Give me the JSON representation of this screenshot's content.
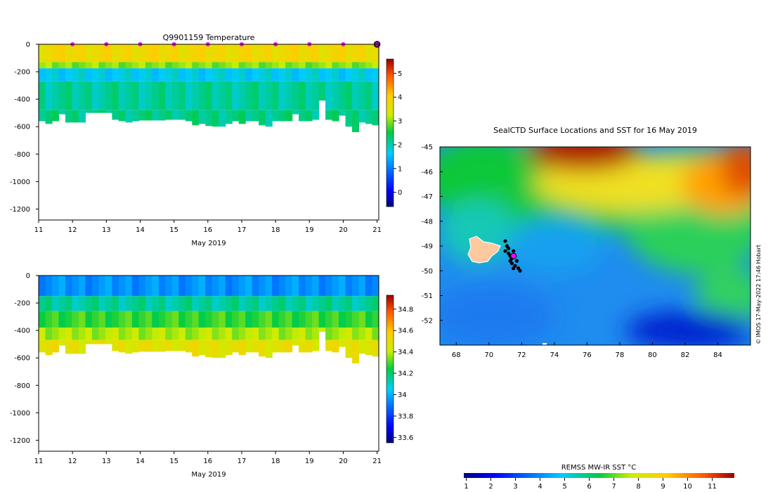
{
  "chart_data": [
    {
      "type": "heatmap",
      "title": "Q9901159  Temperature",
      "xlabel": "May 2019",
      "x_ticks": [
        "11",
        "12",
        "13",
        "14",
        "15",
        "16",
        "17",
        "18",
        "19",
        "20",
        "21"
      ],
      "xlim": [
        11,
        21.05
      ],
      "y_ticks": [
        "0",
        "-200",
        "-400",
        "-600",
        "-800",
        "-1000",
        "-1200"
      ],
      "ylim": [
        -1280,
        0
      ],
      "colorbar": {
        "ticks": [
          "0",
          "1",
          "2",
          "3",
          "4",
          "5"
        ],
        "range": [
          -0.6,
          5.6
        ]
      },
      "profile_max_depth_m": [
        560,
        580,
        560,
        510,
        570,
        570,
        570,
        500,
        500,
        500,
        500,
        550,
        560,
        570,
        560,
        555,
        555,
        555,
        555,
        550,
        550,
        550,
        560,
        590,
        580,
        595,
        600,
        600,
        580,
        560,
        580,
        560,
        560,
        590,
        600,
        560,
        560,
        560,
        510,
        560,
        560,
        550,
        410,
        550,
        560,
        520,
        600,
        640,
        570,
        580,
        590
      ],
      "layers": [
        {
          "depth": [
            0,
            130
          ],
          "value": 3.8
        },
        {
          "depth": [
            130,
            175
          ],
          "value": 3.0
        },
        {
          "depth": [
            175,
            270
          ],
          "value": 1.7
        },
        {
          "depth": [
            270,
            480
          ],
          "value": 2.1
        },
        {
          "depth": [
            480,
            700
          ],
          "value": 2.2
        }
      ],
      "surface_markers_day": [
        12,
        13,
        14,
        15,
        16,
        17,
        18,
        19,
        20
      ],
      "end_marker_day": 21
    },
    {
      "type": "heatmap",
      "title": "",
      "xlabel": "May 2019",
      "x_ticks": [
        "11",
        "12",
        "13",
        "14",
        "15",
        "16",
        "17",
        "18",
        "19",
        "20",
        "21"
      ],
      "xlim": [
        11,
        21.05
      ],
      "y_ticks": [
        "0",
        "-200",
        "-400",
        "-600",
        "-800",
        "-1000",
        "-1200"
      ],
      "ylim": [
        -1280,
        0
      ],
      "colorbar": {
        "ticks": [
          "33.6",
          "33.8",
          "34",
          "34.2",
          "34.4",
          "34.6",
          "34.8"
        ],
        "range": [
          33.55,
          34.93
        ]
      },
      "profile_max_depth_m": [
        560,
        580,
        560,
        510,
        570,
        570,
        570,
        500,
        500,
        500,
        500,
        550,
        560,
        570,
        560,
        555,
        555,
        555,
        555,
        550,
        550,
        550,
        560,
        590,
        580,
        595,
        600,
        600,
        580,
        560,
        580,
        560,
        560,
        590,
        600,
        560,
        560,
        560,
        510,
        560,
        560,
        550,
        410,
        550,
        560,
        520,
        600,
        640,
        570,
        580,
        590
      ],
      "layers": [
        {
          "depth": [
            0,
            150
          ],
          "value": 33.95
        },
        {
          "depth": [
            150,
            260
          ],
          "value": 34.15
        },
        {
          "depth": [
            260,
            380
          ],
          "value": 34.28
        },
        {
          "depth": [
            380,
            470
          ],
          "value": 34.38
        },
        {
          "depth": [
            470,
            700
          ],
          "value": 34.48
        }
      ]
    },
    {
      "type": "heatmap",
      "title": "SealCTD Surface Locations and SST for 16 May 2019",
      "x_ticks": [
        "68",
        "70",
        "72",
        "74",
        "76",
        "78",
        "80",
        "82",
        "84"
      ],
      "xlim": [
        67,
        86
      ],
      "y_ticks": [
        "-45",
        "-46",
        "-47",
        "-48",
        "-49",
        "-50",
        "-51",
        "-52"
      ],
      "ylim": [
        -53,
        -45
      ],
      "colorbar": {
        "label": "REMSS MW-IR SST °C",
        "ticks": [
          "1",
          "2",
          "3",
          "4",
          "5",
          "6",
          "7",
          "8",
          "9",
          "10",
          "11"
        ],
        "range": [
          0.9,
          11.9
        ]
      },
      "track_points": [
        [
          71.0,
          -48.8
        ],
        [
          71.1,
          -49.0
        ],
        [
          71.2,
          -49.1
        ],
        [
          71.2,
          -49.3
        ],
        [
          71.3,
          -49.4
        ],
        [
          71.4,
          -49.5
        ],
        [
          71.4,
          -49.7
        ],
        [
          71.6,
          -49.8
        ],
        [
          71.8,
          -49.9
        ],
        [
          71.5,
          -49.9
        ],
        [
          71.9,
          -50.0
        ],
        [
          71.3,
          -49.6
        ],
        [
          71.7,
          -49.6
        ],
        [
          71.5,
          -49.2
        ],
        [
          71.0,
          -49.2
        ]
      ],
      "current_location": [
        71.5,
        -49.4
      ],
      "watermark": "© IMOS 17-May-2022 17:46 Hobart"
    }
  ]
}
